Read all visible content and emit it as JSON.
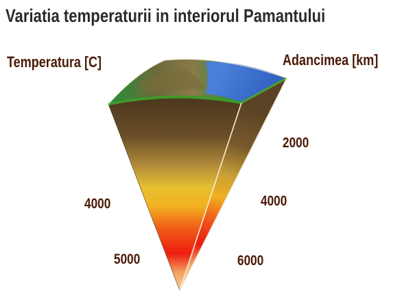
{
  "title": "Variatia temperaturii in interiorul Pamantului",
  "left_heading": "Temperatura [C]",
  "right_heading": "Adancimea [km]",
  "temperature_labels": [
    "4000",
    "5000"
  ],
  "depth_labels": [
    "2000",
    "4000",
    "6000"
  ],
  "colors": {
    "title": "#2a2a2a",
    "labels": "#4a1a08",
    "ocean": "#3d6fd0",
    "land": "#6b7a3a",
    "crust_edge": "#3f8f2a",
    "mantle_top": "#5a4020",
    "mantle_mid": "#c8a030",
    "outer_core": "#f0c020",
    "inner_core": "#e82010"
  }
}
